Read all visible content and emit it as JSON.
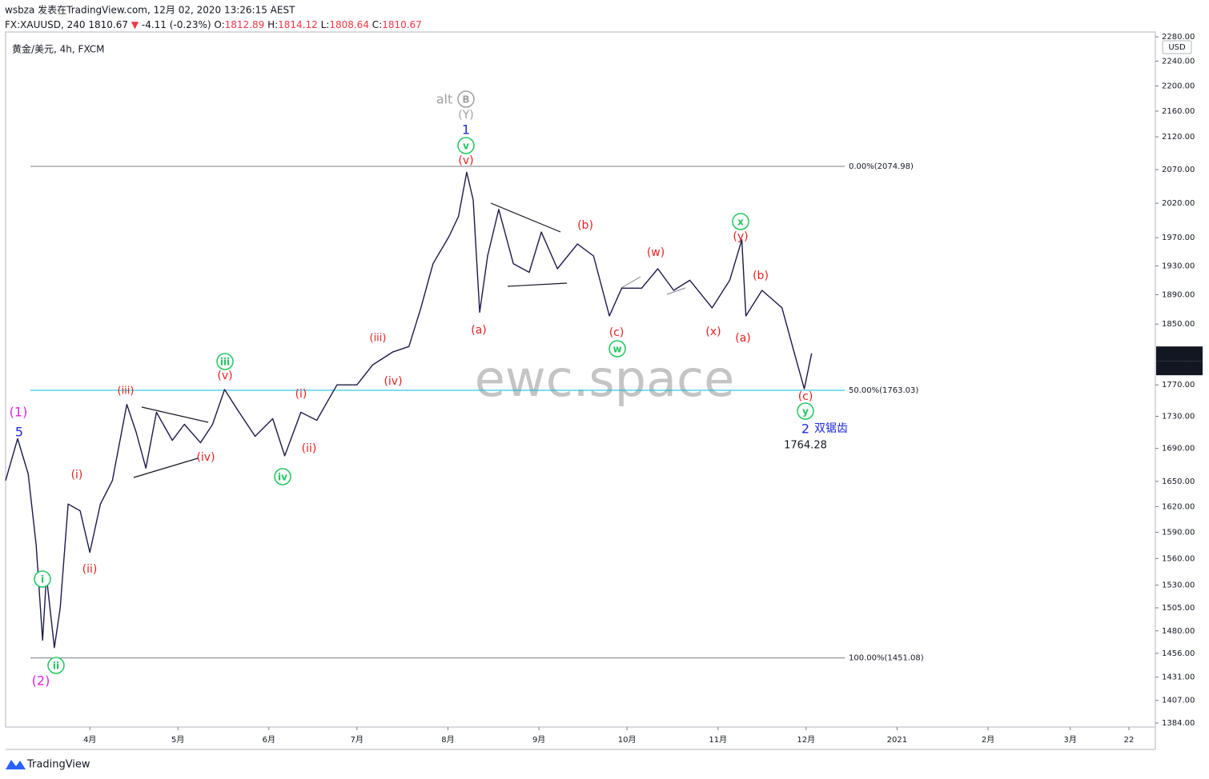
{
  "header": {
    "line1": "wsbza 发表在TradingView.com, 12月 02, 2020 13:26:15 AEST",
    "line2": [
      {
        "text": "FX:XAUUSD, 240 ",
        "color": "#131722"
      },
      {
        "text": "1810.67 ",
        "color": "#131722"
      },
      {
        "text": "▼",
        "color": "#f23645"
      },
      {
        "text": " -4.11 (-0.23%) ",
        "color": "#131722"
      },
      {
        "text": "O:",
        "color": "#131722"
      },
      {
        "text": "1812.89 ",
        "color": "#f23645"
      },
      {
        "text": "H:",
        "color": "#131722"
      },
      {
        "text": "1814.12 ",
        "color": "#f23645"
      },
      {
        "text": "L:",
        "color": "#131722"
      },
      {
        "text": "1808.64 ",
        "color": "#f23645"
      },
      {
        "text": "C:",
        "color": "#131722"
      },
      {
        "text": "1810.67",
        "color": "#f23645"
      }
    ],
    "symbol": "黄金/美元, 4h, FXCM",
    "footer": "TradingView"
  },
  "chart_data": {
    "type": "line",
    "watermark": "ewc.space",
    "currency": "USD",
    "log_scale": true,
    "grid": false,
    "x": [
      63.3,
      67.4,
      71,
      73.7,
      75.9,
      77.2,
      79.9,
      81.9,
      84.6,
      88.7,
      92,
      95.6,
      99.7,
      104.6,
      107.8,
      111.1,
      114.7,
      120.1,
      124.2,
      129.7,
      133.8,
      137.9,
      142,
      148.3,
      154.3,
      158.4,
      163.9,
      169.3,
      176.2,
      183,
      188.4,
      195.3,
      200.7,
      204.8,
      208.9,
      214.4,
      217.6,
      220.4,
      222.6,
      224.8,
      227.5,
      231.3,
      236.3,
      241.7,
      245.8,
      251.3,
      258.1,
      263.6,
      269,
      273.2,
      280,
      285.5,
      290.9,
      296.4,
      304,
      310,
      314.1,
      315.5,
      321,
      327.8,
      331.9,
      335.4,
      337.9
    ],
    "series": [
      {
        "name": "XAUUSD",
        "color": "#1b1a4a",
        "values": [
          1651,
          1702,
          1659,
          1576,
          1470,
          1540,
          1462,
          1505,
          1623,
          1615,
          1567,
          1623,
          1651,
          1745,
          1710,
          1666,
          1735,
          1700,
          1720,
          1697,
          1720,
          1764,
          1740,
          1705,
          1727,
          1681,
          1735,
          1725,
          1770,
          1770,
          1796,
          1813,
          1820,
          1872,
          1933,
          1972,
          2001,
          2066,
          2025,
          1866,
          1944,
          2011,
          1933,
          1921,
          1978,
          1926,
          1961,
          1944,
          1861,
          1899,
          1899,
          1926,
          1896,
          1910,
          1872,
          1910,
          1967,
          1861,
          1896,
          1872,
          1813,
          1765,
          1811
        ]
      }
    ],
    "xlim": [
      63.3,
      455
    ],
    "xticks": [
      {
        "value": 92,
        "label": "4月"
      },
      {
        "value": 122,
        "label": "5月"
      },
      {
        "value": 153,
        "label": "6月"
      },
      {
        "value": 183,
        "label": "7月"
      },
      {
        "value": 214,
        "label": "8月"
      },
      {
        "value": 245,
        "label": "9月"
      },
      {
        "value": 275,
        "label": "10月"
      },
      {
        "value": 306,
        "label": "11月"
      },
      {
        "value": 336,
        "label": "12月"
      },
      {
        "value": 367,
        "label": "2021"
      },
      {
        "value": 398,
        "label": "2月"
      },
      {
        "value": 426,
        "label": "3月"
      },
      {
        "value": 446,
        "label": "22"
      }
    ],
    "ylim": [
      1380,
      2288
    ],
    "yticks": [
      {
        "value": 2280,
        "label": "2280.00"
      },
      {
        "value": 2240,
        "label": "2240.00"
      },
      {
        "value": 2200,
        "label": "2200.00"
      },
      {
        "value": 2160,
        "label": "2160.00"
      },
      {
        "value": 2120,
        "label": "2120.00"
      },
      {
        "value": 2070,
        "label": "2070.00"
      },
      {
        "value": 2020,
        "label": "2020.00"
      },
      {
        "value": 1970,
        "label": "1970.00"
      },
      {
        "value": 1930,
        "label": "1930.00"
      },
      {
        "value": 1890,
        "label": "1890.00"
      },
      {
        "value": 1850,
        "label": "1850.00"
      },
      {
        "value": 1770,
        "label": "1770.00"
      },
      {
        "value": 1730,
        "label": "1730.00"
      },
      {
        "value": 1690,
        "label": "1690.00"
      },
      {
        "value": 1650,
        "label": "1650.00"
      },
      {
        "value": 1620,
        "label": "1620.00"
      },
      {
        "value": 1590,
        "label": "1590.00"
      },
      {
        "value": 1560,
        "label": "1560.00"
      },
      {
        "value": 1530,
        "label": "1530.00"
      },
      {
        "value": 1505,
        "label": "1505.00"
      },
      {
        "value": 1480,
        "label": "1480.00"
      },
      {
        "value": 1456,
        "label": "1456.00"
      },
      {
        "value": 1431,
        "label": "1431.00"
      },
      {
        "value": 1407,
        "label": "1407.00"
      },
      {
        "value": 1384,
        "label": "1384.00"
      }
    ],
    "last_price": 1810.67,
    "countdown": "02:33:47",
    "fib_levels": [
      {
        "label": "0.00%(2074.98)",
        "value": 2074.98,
        "color": "#787b86"
      },
      {
        "label": "50.00%(1763.03)",
        "value": 1763.03,
        "color": "#00bcd4"
      },
      {
        "label": "100.00%(1451.08)",
        "value": 1451.08,
        "color": "#787b86"
      }
    ],
    "annotations": [
      {
        "text": "alt",
        "color": "#a0a0a0",
        "circled": false
      },
      {
        "text": "B",
        "color": "#a0a0a0",
        "circled": true
      },
      {
        "text": "(Y)",
        "color": "#a0a0a0",
        "circled": false
      },
      {
        "text": "1",
        "color": "#1e2adf",
        "circled": false
      },
      {
        "text": "v",
        "color": "#22c55e",
        "circled": true
      },
      {
        "text": "(v)",
        "color": "#e52222",
        "circled": false
      },
      {
        "text": "(a)",
        "color": "#e52222",
        "circled": false
      },
      {
        "text": "(b)",
        "color": "#e52222",
        "circled": false
      },
      {
        "text": "(c)",
        "color": "#e52222",
        "circled": false
      },
      {
        "text": "w",
        "color": "#22c55e",
        "circled": true
      },
      {
        "text": "(w)",
        "color": "#e52222",
        "circled": false
      },
      {
        "text": "x",
        "color": "#22c55e",
        "circled": true
      },
      {
        "text": "(y)",
        "color": "#e52222",
        "circled": false
      },
      {
        "text": "(x)",
        "color": "#e52222",
        "circled": false
      },
      {
        "text": "(a)",
        "color": "#e52222",
        "circled": false
      },
      {
        "text": "(b)",
        "color": "#e52222",
        "circled": false
      },
      {
        "text": "(c)",
        "color": "#e52222",
        "circled": false
      },
      {
        "text": "y",
        "color": "#22c55e",
        "circled": true
      },
      {
        "text": "2",
        "color": "#1e2adf",
        "circled": false
      },
      {
        "text": "双锯齿",
        "color": "#1e2adf",
        "circled": false
      },
      {
        "text": "1764.28",
        "color": "#131722",
        "circled": false
      },
      {
        "text": "(1)",
        "color": "#e020e0",
        "circled": false
      },
      {
        "text": "5",
        "color": "#1e2adf",
        "circled": false
      },
      {
        "text": "(i)",
        "color": "#e52222",
        "circled": false
      },
      {
        "text": "(ii)",
        "color": "#e52222",
        "circled": false
      },
      {
        "text": "i",
        "color": "#22c55e",
        "circled": true
      },
      {
        "text": "ii",
        "color": "#22c55e",
        "circled": true
      },
      {
        "text": "(2)",
        "color": "#e020e0",
        "circled": false
      },
      {
        "text": "(iii)",
        "color": "#e52222",
        "circled": false
      },
      {
        "text": "(iv)",
        "color": "#e52222",
        "circled": false
      },
      {
        "text": "iii",
        "color": "#22c55e",
        "circled": true
      },
      {
        "text": "(v)",
        "color": "#e52222",
        "circled": false
      },
      {
        "text": "iv",
        "color": "#22c55e",
        "circled": true
      },
      {
        "text": "(i)",
        "color": "#e52222",
        "circled": false
      },
      {
        "text": "(ii)",
        "color": "#e52222",
        "circled": false
      },
      {
        "text": "(iii)",
        "color": "#e52222",
        "circled": false
      },
      {
        "text": "(iv)",
        "color": "#e52222",
        "circled": false
      }
    ]
  }
}
